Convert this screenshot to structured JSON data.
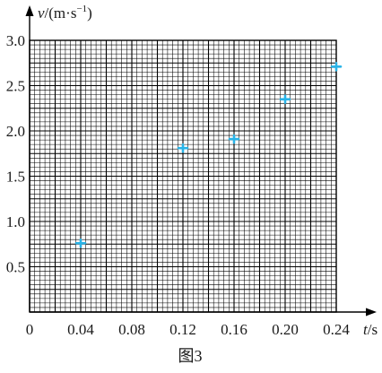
{
  "chart_data": {
    "type": "scatter",
    "title": "",
    "caption": "图3",
    "xlabel": {
      "var": "t",
      "unit": "/s"
    },
    "ylabel": {
      "var": "v",
      "unit_before": "/(m·s",
      "exp": "−1",
      "unit_after": ")"
    },
    "xlim": [
      0,
      0.24
    ],
    "ylim": [
      0,
      3.0
    ],
    "x_ticks": [
      "0",
      "0.04",
      "0.08",
      "0.12",
      "0.16",
      "0.20",
      "0.24"
    ],
    "y_ticks": [
      "0.5",
      "1.0",
      "1.5",
      "2.0",
      "2.5",
      "3.0"
    ],
    "grid": true,
    "marker_color": "#2ab4e8",
    "points": [
      {
        "x": 0.04,
        "y": 0.76
      },
      {
        "x": 0.12,
        "y": 1.81
      },
      {
        "x": 0.16,
        "y": 1.91
      },
      {
        "x": 0.2,
        "y": 2.35
      },
      {
        "x": 0.24,
        "y": 2.71
      }
    ]
  }
}
